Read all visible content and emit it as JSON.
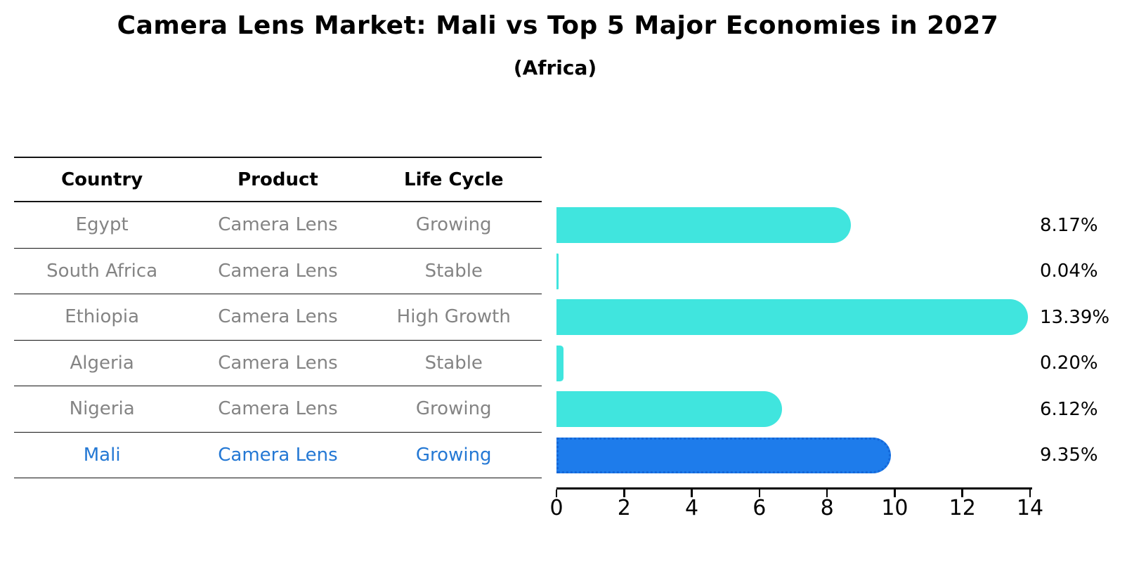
{
  "title": "Camera Lens Market: Mali vs Top 5 Major Economies in 2027",
  "subtitle": "(Africa)",
  "table": {
    "headers": [
      "Country",
      "Product",
      "Life Cycle"
    ],
    "rows": [
      {
        "country": "Egypt",
        "product": "Camera Lens",
        "life_cycle": "Growing",
        "value_label": "8.17%",
        "highlighted": false
      },
      {
        "country": "South Africa",
        "product": "Camera Lens",
        "life_cycle": "Stable",
        "value_label": "0.04%",
        "highlighted": false
      },
      {
        "country": "Ethiopia",
        "product": "Camera Lens",
        "life_cycle": "High Growth",
        "value_label": "13.39%",
        "highlighted": false
      },
      {
        "country": "Algeria",
        "product": "Camera Lens",
        "life_cycle": "Stable",
        "value_label": "0.20%",
        "highlighted": false
      },
      {
        "country": "Nigeria",
        "product": "Camera Lens",
        "life_cycle": "Growing",
        "value_label": "6.12%",
        "highlighted": false
      },
      {
        "country": "Mali",
        "product": "Camera Lens",
        "life_cycle": "Growing",
        "value_label": "9.35%",
        "highlighted": true
      }
    ]
  },
  "chart_data": {
    "type": "bar",
    "orientation": "horizontal",
    "title": "Camera Lens Market: Mali vs Top 5 Major Economies in 2027",
    "subtitle": "(Africa)",
    "categories": [
      "Egypt",
      "South Africa",
      "Ethiopia",
      "Algeria",
      "Nigeria",
      "Mali"
    ],
    "values": [
      8.17,
      0.04,
      13.39,
      0.2,
      6.12,
      9.35
    ],
    "value_labels": [
      "8.17%",
      "0.04%",
      "13.39%",
      "0.20%",
      "6.12%",
      "9.35%"
    ],
    "xlim": [
      0,
      14
    ],
    "x_ticks": [
      0,
      2,
      4,
      6,
      8,
      10,
      12,
      14
    ],
    "grid": false,
    "legend": false,
    "bar_color": "#40e5de",
    "highlight_color": "#1e7ceb",
    "highlight_category": "Mali",
    "highlight_text_color": "#2478d4",
    "row_text_color": "#848484"
  }
}
